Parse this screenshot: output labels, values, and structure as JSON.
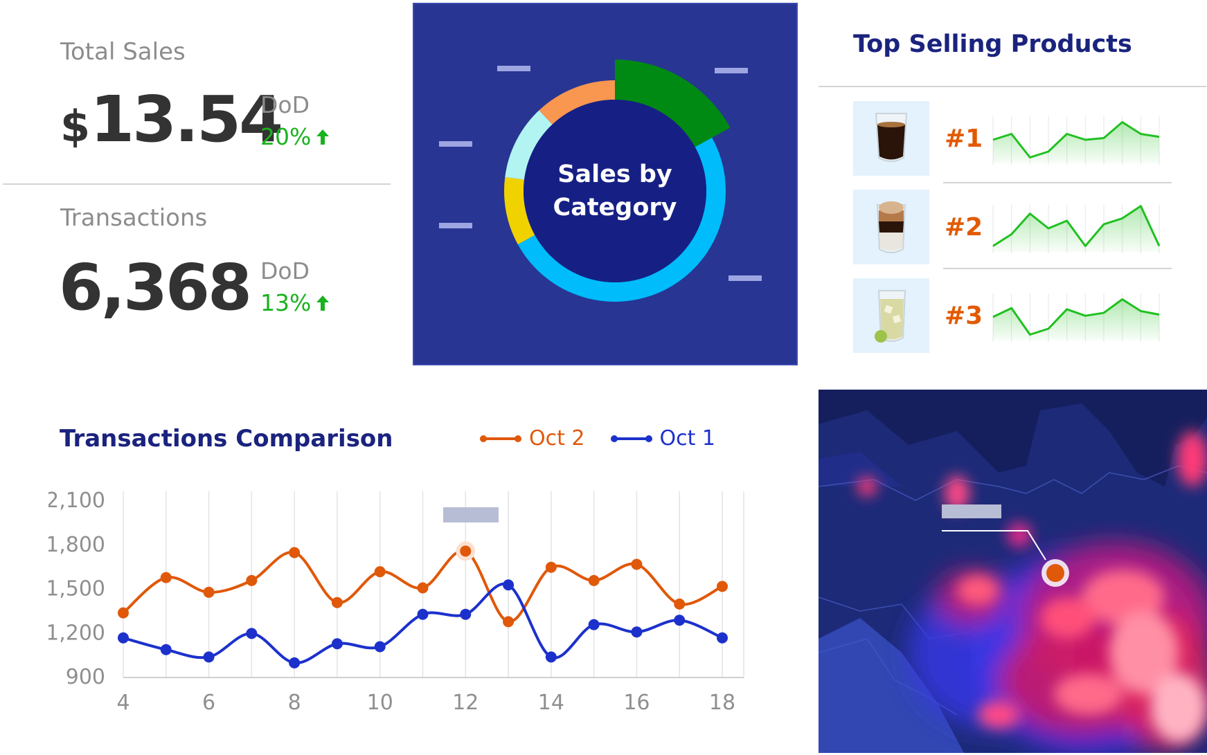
{
  "kpis": {
    "total_sales": {
      "label": "Total Sales",
      "currency": "$",
      "value": "13.54",
      "dod_label": "DoD",
      "dod_pct": "20%"
    },
    "transactions": {
      "label": "Transactions",
      "value": "6,368",
      "dod_label": "DoD",
      "dod_pct": "13%"
    }
  },
  "category_chart": {
    "center_line1": "Sales by",
    "center_line2": "Category",
    "chart_data": {
      "type": "pie",
      "title": "Sales by Category",
      "slices": [
        {
          "color": "#008a14",
          "value": 17,
          "exploded": true
        },
        {
          "color": "#00bcfa",
          "value": 50
        },
        {
          "color": "#f0d200",
          "value": 10
        },
        {
          "color": "#b2f4f1",
          "value": 11
        },
        {
          "color": "#f99650",
          "value": 12
        }
      ]
    }
  },
  "top_products": {
    "title": "Top Selling Products",
    "items": [
      {
        "rank": "#1",
        "icon": "coffee-glass-icon",
        "trend": [
          4,
          5,
          1,
          2,
          5,
          4,
          4.3,
          7,
          5,
          4.5
        ]
      },
      {
        "rank": "#2",
        "icon": "latte-glass-icon",
        "trend": [
          1,
          3,
          6.5,
          4,
          5.3,
          1,
          4.7,
          5.7,
          7.8,
          1
        ]
      },
      {
        "rank": "#3",
        "icon": "iced-drink-icon",
        "trend": [
          4,
          5.5,
          1,
          2,
          5.3,
          4.2,
          4.7,
          7,
          5,
          4.4
        ]
      }
    ],
    "accent": "#20c020"
  },
  "comparison": {
    "title": "Transactions Comparison",
    "chart_data": {
      "type": "line",
      "title": "Transactions Comparison",
      "x": [
        4,
        5,
        6,
        7,
        8,
        9,
        10,
        11,
        12,
        13,
        14,
        15,
        16,
        17,
        18
      ],
      "x_ticks": [
        4,
        6,
        8,
        10,
        12,
        14,
        16,
        18
      ],
      "y_ticks": [
        900,
        1200,
        1500,
        1800,
        2100
      ],
      "ylim": [
        900,
        2100
      ],
      "xlim": [
        4,
        18
      ],
      "grid": "vertical",
      "legend": "top-right",
      "series": [
        {
          "name": "Oct 2",
          "color": "#e0580a",
          "values": [
            1330,
            1570,
            1470,
            1550,
            1740,
            1400,
            1610,
            1500,
            1750,
            1270,
            1640,
            1550,
            1660,
            1390,
            1510
          ]
        },
        {
          "name": "Oct 1",
          "color": "#1c31cc",
          "values": [
            1160,
            1080,
            1030,
            1190,
            990,
            1120,
            1100,
            1320,
            1320,
            1520,
            1030,
            1250,
            1200,
            1280,
            1160
          ]
        }
      ]
    }
  },
  "heatmap": {
    "background": "#1c2a78"
  }
}
